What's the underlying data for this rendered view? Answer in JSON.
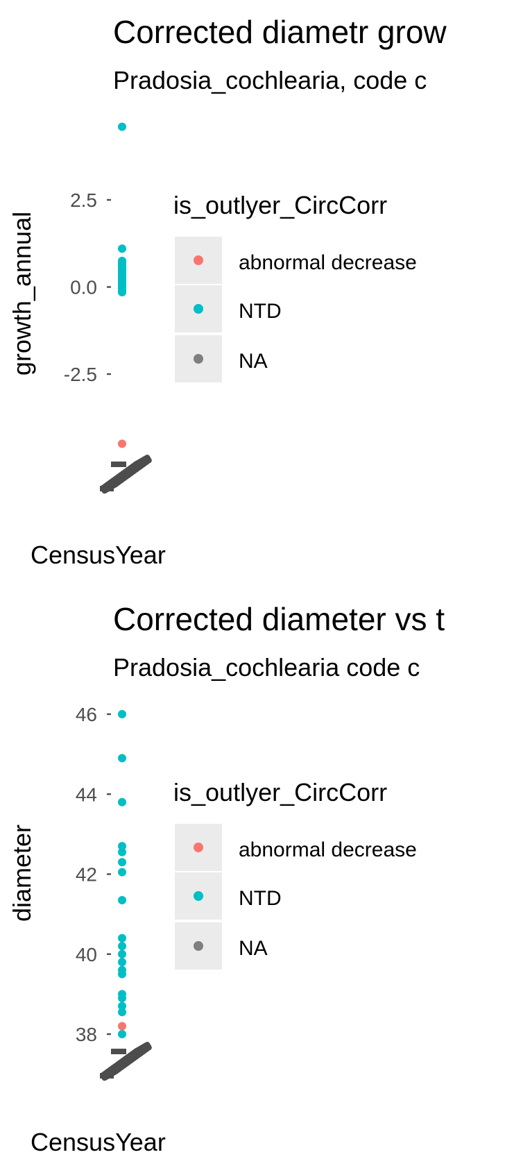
{
  "colors": {
    "abnormal_decrease": "#F8766D",
    "NTD": "#00BFC4",
    "NA": "#7F7F7F",
    "overlap_text": "#4D4D4D",
    "legend_key_bg": "#EBEBEB",
    "tick": "#4D4D4D"
  },
  "chart_data": [
    {
      "type": "scatter",
      "title": "Corrected diametr grow",
      "subtitle": "Pradosia_cochlearia, code c",
      "xlabel": "CensusYear",
      "ylabel": "growth_annual",
      "ylim": [
        -2.95,
        4.3
      ],
      "yticks": [
        {
          "value": 2.5,
          "label": "2.5"
        },
        {
          "value": 0.0,
          "label": "0.0"
        },
        {
          "value": -2.5,
          "label": "-2.5"
        }
      ],
      "legend": {
        "title": "is_outlyer_CircCorr",
        "placement": "right",
        "entries": [
          {
            "label": "abnormal decrease",
            "color_key": "abnormal_decrease"
          },
          {
            "label": "NTD",
            "color_key": "NTD"
          },
          {
            "label": "NA",
            "color_key": "NA"
          }
        ]
      },
      "series": [
        {
          "name": "NTD",
          "color_key": "NTD",
          "values": [
            4.6,
            1.1,
            0.75,
            0.7,
            0.6,
            0.55,
            0.5,
            0.45,
            0.4,
            0.35,
            0.3,
            0.25,
            0.2,
            0.15,
            0.1,
            0.05,
            0.0,
            -0.05,
            -0.1,
            -0.15,
            0.65,
            0.3
          ]
        },
        {
          "name": "abnormal decrease",
          "color_key": "abnormal_decrease",
          "values": []
        },
        {
          "name": "NA",
          "color_key": "NA",
          "values": []
        }
      ],
      "overflow_marks": [
        {
          "color_key": "abnormal_decrease",
          "value": -4.5
        }
      ]
    },
    {
      "type": "scatter",
      "title": "Corrected diameter vs t",
      "subtitle": "Pradosia_cochlearia code c",
      "xlabel": "CensusYear",
      "ylabel": "diameter",
      "ylim": [
        37.6,
        46.2
      ],
      "yticks": [
        {
          "value": 46,
          "label": "46"
        },
        {
          "value": 44,
          "label": "44"
        },
        {
          "value": 42,
          "label": "42"
        },
        {
          "value": 40,
          "label": "40"
        },
        {
          "value": 38,
          "label": "38"
        }
      ],
      "legend": {
        "title": "is_outlyer_CircCorr",
        "placement": "right",
        "entries": [
          {
            "label": "abnormal decrease",
            "color_key": "abnormal_decrease"
          },
          {
            "label": "NTD",
            "color_key": "NTD"
          },
          {
            "label": "NA",
            "color_key": "NA"
          }
        ]
      },
      "series": [
        {
          "name": "NTD",
          "color_key": "NTD",
          "values": [
            46.0,
            44.9,
            43.8,
            42.7,
            42.55,
            42.3,
            42.05,
            41.35,
            40.4,
            40.2,
            40.0,
            39.8,
            39.6,
            39.5,
            39.0,
            38.9,
            38.7,
            38.55,
            38.0
          ]
        },
        {
          "name": "abnormal decrease",
          "color_key": "abnormal_decrease",
          "values": [
            38.2
          ]
        },
        {
          "name": "NA",
          "color_key": "NA",
          "values": []
        }
      ]
    }
  ]
}
